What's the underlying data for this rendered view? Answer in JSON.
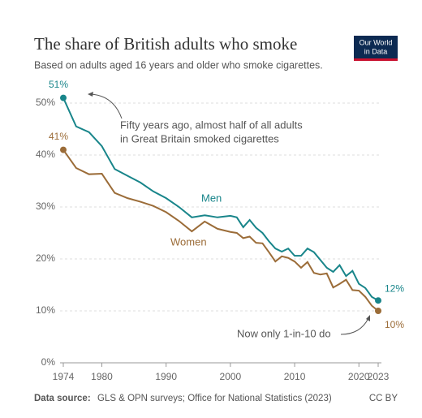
{
  "chart_data": {
    "type": "line",
    "title": "The share of British adults who smoke",
    "subtitle": "Based on adults aged 16 years and older who smoke cigarettes.",
    "logo": [
      "Our World",
      "in Data"
    ],
    "x": [
      1974,
      1976,
      1978,
      1980,
      1982,
      1984,
      1986,
      1988,
      1990,
      1992,
      1994,
      1996,
      1998,
      2000,
      2001,
      2002,
      2003,
      2004,
      2005,
      2006,
      2007,
      2008,
      2009,
      2010,
      2011,
      2012,
      2013,
      2014,
      2015,
      2016,
      2017,
      2018,
      2019,
      2020,
      2021,
      2022,
      2023
    ],
    "series": [
      {
        "name": "Men",
        "color": "#18858a",
        "values": [
          51,
          45.5,
          44.4,
          41.7,
          37.3,
          36,
          34.7,
          33,
          31.7,
          30,
          28,
          28.4,
          28,
          28.3,
          28,
          26.1,
          27.5,
          26,
          25,
          23.4,
          22,
          21.4,
          22,
          20.6,
          20.6,
          22,
          21.3,
          19.8,
          18.3,
          17.5,
          18.8,
          16.7,
          17.7,
          15.2,
          14.4,
          12.7,
          12
        ],
        "value_labels": [
          "51%",
          null,
          null,
          null,
          null,
          null,
          null,
          null,
          null,
          null,
          null,
          null,
          null,
          null,
          null,
          null,
          null,
          null,
          null,
          null,
          null,
          null,
          null,
          null,
          null,
          null,
          null,
          null,
          null,
          null,
          null,
          null,
          null,
          null,
          null,
          null,
          "12%"
        ]
      },
      {
        "name": "Women",
        "color": "#9b6c38",
        "values": [
          41,
          37.5,
          36.3,
          36.4,
          32.7,
          31.7,
          31,
          30.2,
          29,
          27.3,
          25.3,
          27.2,
          25.8,
          25.2,
          25,
          24,
          24.3,
          23.1,
          23,
          21.3,
          19.5,
          20.5,
          20.2,
          19.5,
          18.3,
          19.4,
          17.3,
          17,
          17.2,
          14.5,
          15.2,
          16,
          14,
          13.9,
          12.7,
          11,
          10
        ],
        "value_labels": [
          "41%",
          null,
          null,
          null,
          null,
          null,
          null,
          null,
          null,
          null,
          null,
          null,
          null,
          null,
          null,
          null,
          null,
          null,
          null,
          null,
          null,
          null,
          null,
          null,
          null,
          null,
          null,
          null,
          null,
          null,
          null,
          null,
          null,
          null,
          null,
          null,
          "10%"
        ]
      }
    ],
    "xlim": [
      1974,
      2023
    ],
    "xticks": [
      1974,
      1980,
      1990,
      2000,
      2010,
      2020,
      2023
    ],
    "ylim": [
      0,
      50
    ],
    "yticks": [
      {
        "value": 0,
        "label": "0%"
      },
      {
        "value": 10,
        "label": "10%"
      },
      {
        "value": 20,
        "label": "20%"
      },
      {
        "value": 30,
        "label": "30%"
      },
      {
        "value": 40,
        "label": "40%"
      },
      {
        "value": 50,
        "label": "50%"
      }
    ],
    "grid": true,
    "annotations": [
      "Fifty years ago, almost half of all adults",
      "in Great Britain smoked cigarettes",
      "Now only 1-in-10 do"
    ],
    "source_label": "Data source:",
    "source": "GLS & OPN surveys; Office for National Statistics (2023)",
    "license": "CC BY"
  }
}
